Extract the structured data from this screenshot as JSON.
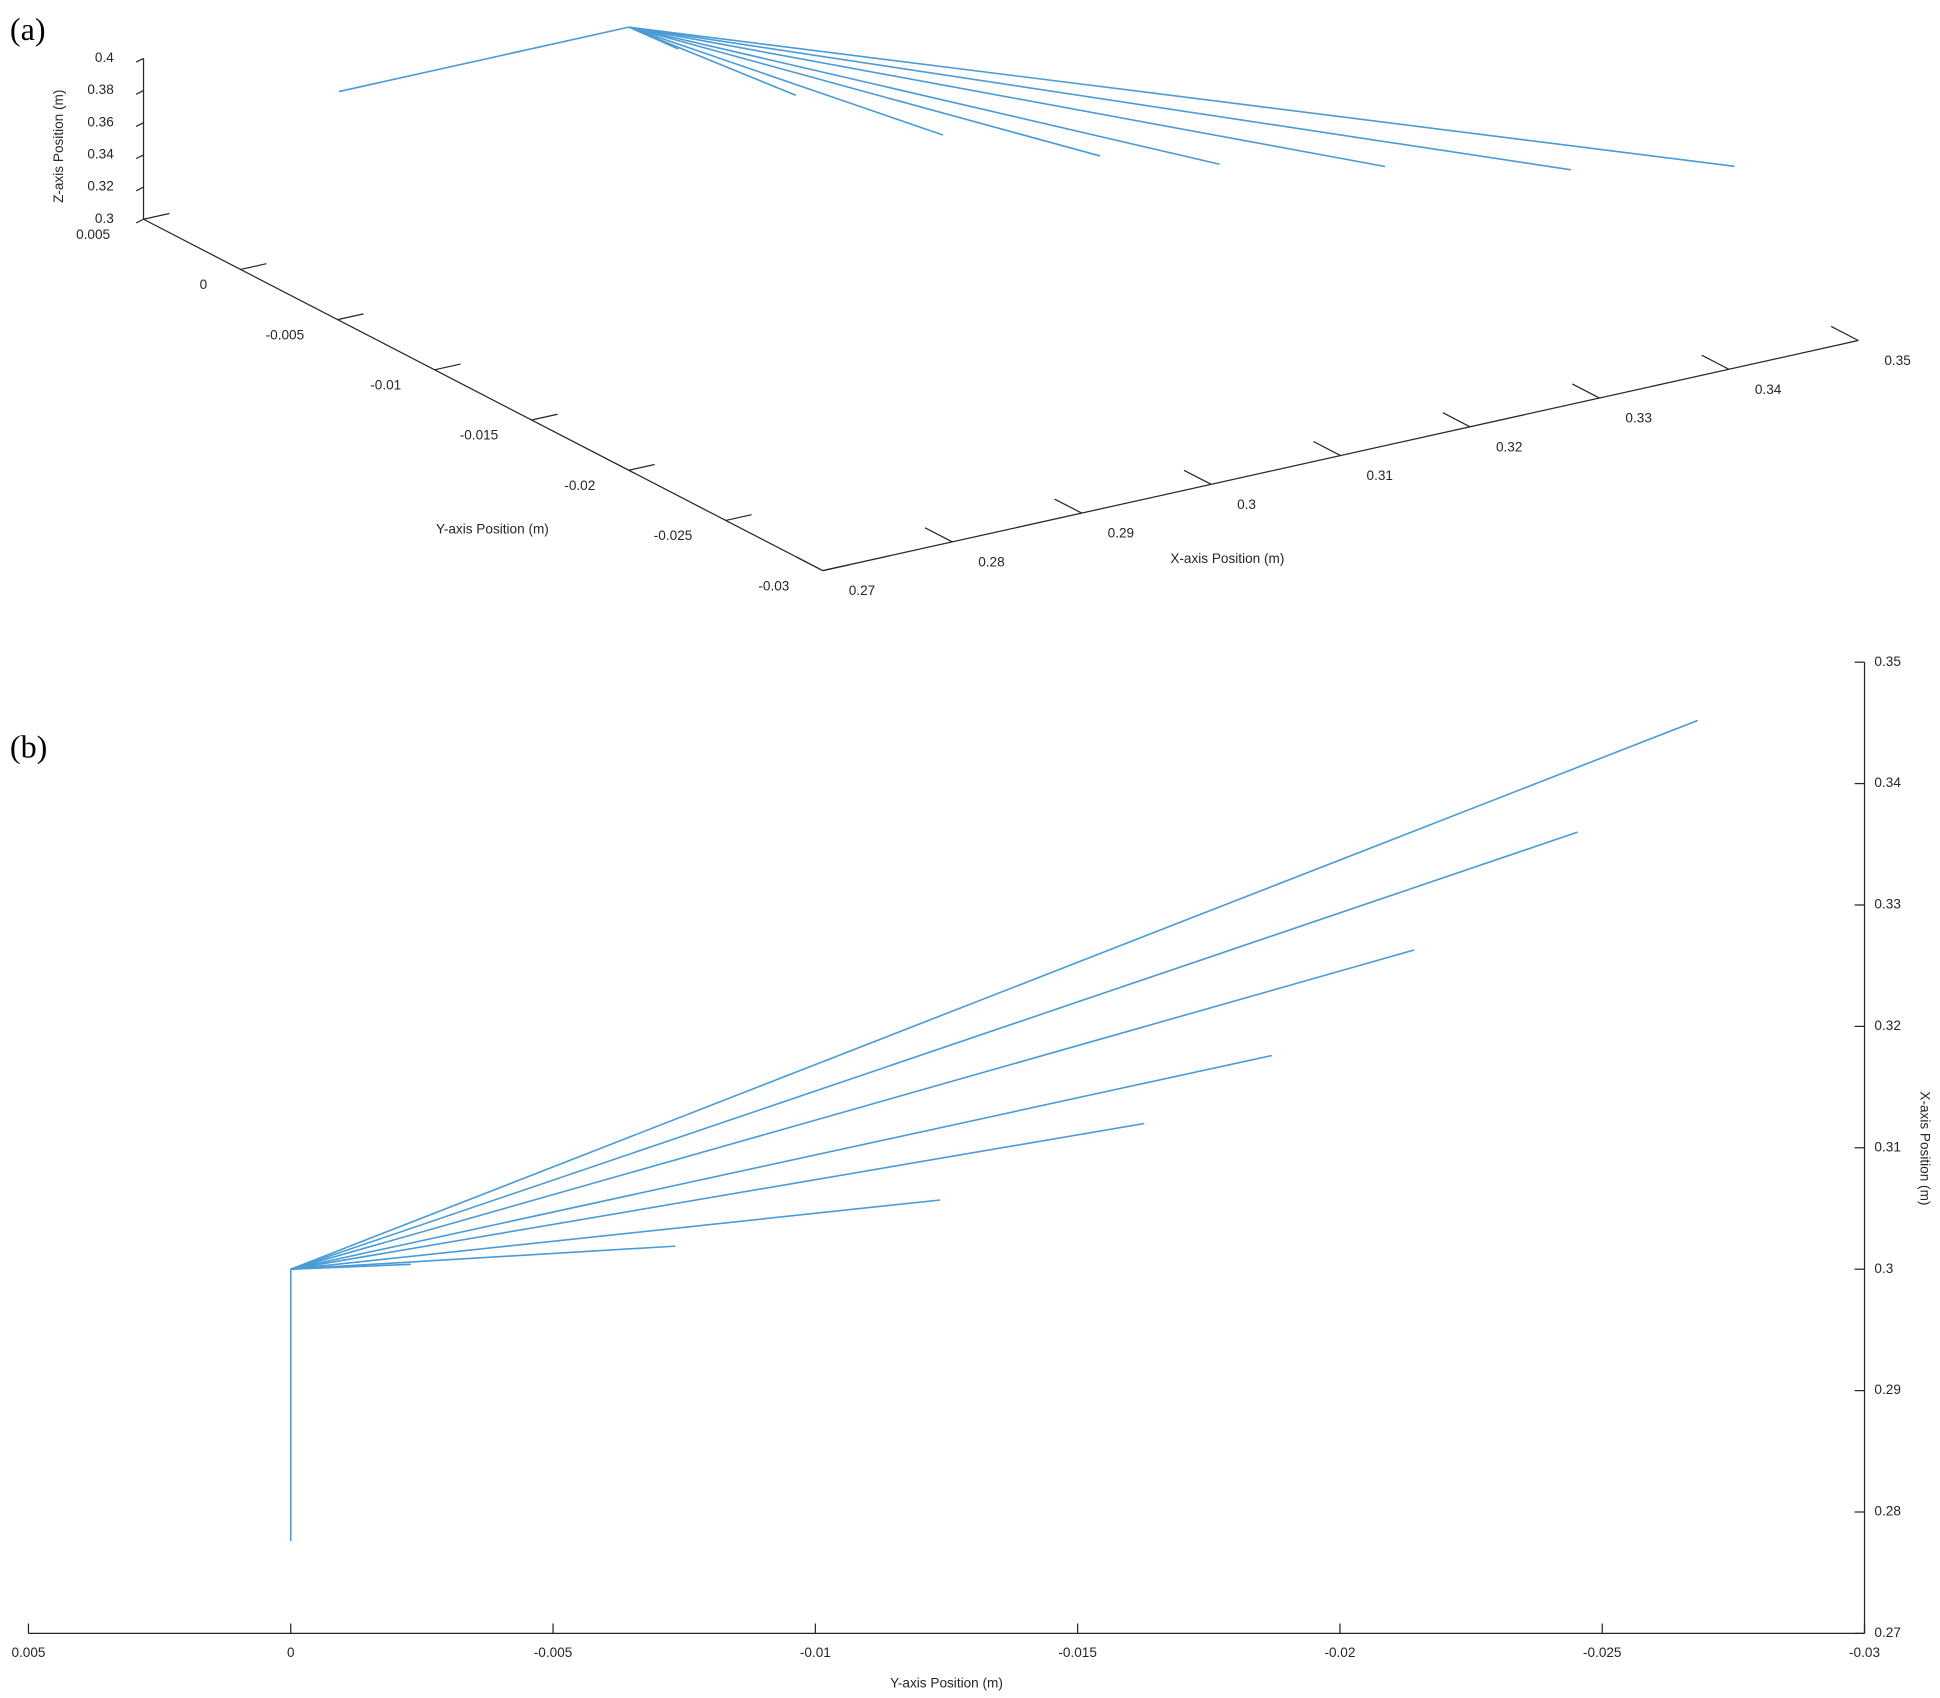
{
  "chart_data": [
    {
      "type": "line3d",
      "panel_label": "(a)",
      "x_label": "X-axis Position (m)",
      "y_label": "Y-axis Position (m)",
      "z_label": "Z-axis Position (m)",
      "color": "#4a9bd6",
      "xlim": [
        0.27,
        0.35
      ],
      "xticks": [
        0.27,
        0.28,
        0.29,
        0.3,
        0.31,
        0.32,
        0.33,
        0.34,
        0.35
      ],
      "ylim": [
        -0.03,
        0.005
      ],
      "yticks": [
        0.005,
        0,
        -0.005,
        -0.01,
        -0.015,
        -0.02,
        -0.025,
        -0.03
      ],
      "zlim": [
        0.3,
        0.4
      ],
      "zticks": [
        0.3,
        0.32,
        0.34,
        0.36,
        0.38,
        0.4
      ],
      "series": [
        {
          "x": [
            0.2776,
            0.3
          ],
          "y": [
            0,
            0
          ],
          "z": [
            0.397,
            0.397
          ]
        },
        {
          "x": [
            0.3,
            0.3004
          ],
          "y": [
            0,
            -0.00229
          ],
          "z": [
            0.397,
            0.397
          ]
        },
        {
          "x": [
            0.3,
            0.3019
          ],
          "y": [
            0,
            -0.00733
          ],
          "z": [
            0.397,
            0.397
          ]
        },
        {
          "x": [
            0.3,
            0.3057
          ],
          "y": [
            0,
            -0.01238
          ],
          "z": [
            0.397,
            0.397
          ]
        },
        {
          "x": [
            0.3,
            0.312
          ],
          "y": [
            0,
            -0.01627
          ],
          "z": [
            0.397,
            0.397
          ]
        },
        {
          "x": [
            0.3,
            0.3176
          ],
          "y": [
            0,
            -0.0187
          ],
          "z": [
            0.397,
            0.397
          ]
        },
        {
          "x": [
            0.3,
            0.3263
          ],
          "y": [
            0,
            -0.02142
          ],
          "z": [
            0.397,
            0.397
          ]
        },
        {
          "x": [
            0.3,
            0.336
          ],
          "y": [
            0,
            -0.02453
          ],
          "z": [
            0.397,
            0.397
          ]
        },
        {
          "x": [
            0.3,
            0.3452
          ],
          "y": [
            0,
            -0.02682
          ],
          "z": [
            0.397,
            0.397
          ]
        }
      ]
    },
    {
      "type": "line",
      "panel_label": "(b)",
      "x_label": "Y-axis Position (m)",
      "y_label": "X-axis Position (m)",
      "color": "#4a9bd6",
      "xlim": [
        0.005,
        -0.03
      ],
      "xticks": [
        0.005,
        0,
        -0.005,
        -0.01,
        -0.015,
        -0.02,
        -0.025,
        -0.03
      ],
      "ylim": [
        0.27,
        0.35
      ],
      "yticks": [
        0.27,
        0.28,
        0.29,
        0.3,
        0.31,
        0.32,
        0.33,
        0.34,
        0.35
      ],
      "series": [
        {
          "x": [
            0,
            0
          ],
          "values": [
            0.2776,
            0.3
          ]
        },
        {
          "x": [
            0,
            -0.00229
          ],
          "values": [
            0.3,
            0.3004
          ]
        },
        {
          "x": [
            0,
            -0.00733
          ],
          "values": [
            0.3,
            0.3019
          ]
        },
        {
          "x": [
            0,
            -0.01238
          ],
          "values": [
            0.3,
            0.3057
          ]
        },
        {
          "x": [
            0,
            -0.01627
          ],
          "values": [
            0.3,
            0.312
          ]
        },
        {
          "x": [
            0,
            -0.0187
          ],
          "values": [
            0.3,
            0.3176
          ]
        },
        {
          "x": [
            0,
            -0.02142
          ],
          "values": [
            0.3,
            0.3263
          ]
        },
        {
          "x": [
            0,
            -0.02453
          ],
          "values": [
            0.3,
            0.336
          ]
        },
        {
          "x": [
            0,
            -0.02682
          ],
          "values": [
            0.3,
            0.3452
          ]
        }
      ]
    }
  ]
}
